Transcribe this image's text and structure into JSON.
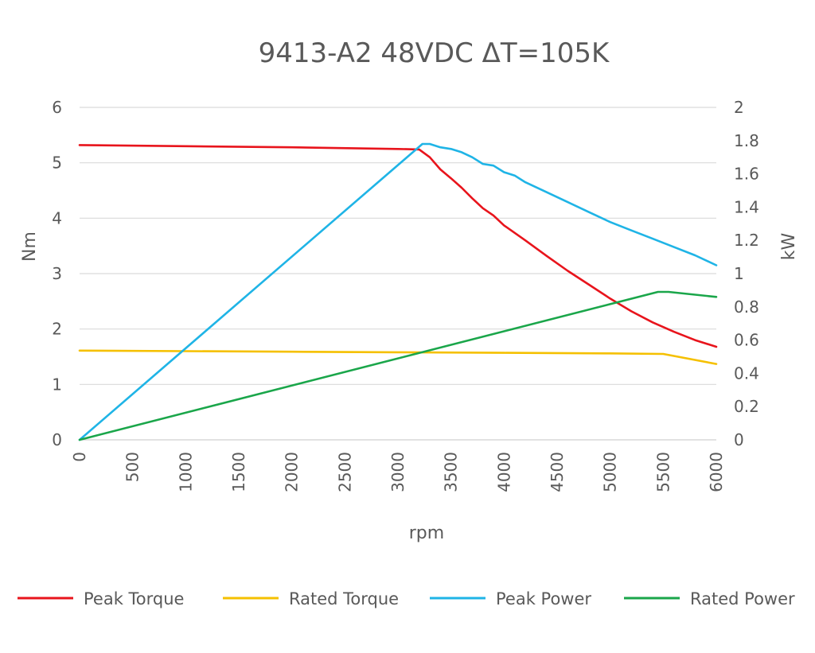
{
  "chart_data": {
    "type": "line",
    "title": "9413-A2 48VDC ΔT=105K",
    "xlabel": "rpm",
    "ylabel": "Nm",
    "y2label": "kW",
    "xlim": [
      0,
      6000
    ],
    "ylim": [
      0,
      6
    ],
    "y2lim": [
      0,
      2
    ],
    "x_ticks": [
      0,
      500,
      1000,
      1500,
      2000,
      2500,
      3000,
      3500,
      4000,
      4500,
      5000,
      5500,
      6000
    ],
    "y_ticks": [
      "0",
      "1",
      "2",
      "3",
      "4",
      "5",
      "6"
    ],
    "y2_ticks": [
      "0",
      "0.2",
      "0.4",
      "0.6",
      "0.8",
      "1",
      "1.2",
      "1.4",
      "1.6",
      "1.8",
      "2"
    ],
    "grid": true,
    "legend_position": "bottom",
    "series": [
      {
        "name": "Peak Torque",
        "color": "#e8141c",
        "axis": "left",
        "points": [
          [
            0,
            5.32
          ],
          [
            1000,
            5.3
          ],
          [
            2000,
            5.28
          ],
          [
            3000,
            5.25
          ],
          [
            3200,
            5.24
          ],
          [
            3300,
            5.1
          ],
          [
            3400,
            4.88
          ],
          [
            3500,
            4.72
          ],
          [
            3600,
            4.55
          ],
          [
            3700,
            4.36
          ],
          [
            3800,
            4.18
          ],
          [
            3900,
            4.05
          ],
          [
            4000,
            3.87
          ],
          [
            4200,
            3.6
          ],
          [
            4400,
            3.32
          ],
          [
            4600,
            3.05
          ],
          [
            4800,
            2.8
          ],
          [
            5000,
            2.55
          ],
          [
            5200,
            2.32
          ],
          [
            5400,
            2.12
          ],
          [
            5600,
            1.95
          ],
          [
            5800,
            1.8
          ],
          [
            6000,
            1.68
          ]
        ]
      },
      {
        "name": "Rated Torque",
        "color": "#f5c000",
        "axis": "left",
        "points": [
          [
            0,
            1.61
          ],
          [
            1000,
            1.6
          ],
          [
            2000,
            1.59
          ],
          [
            3000,
            1.58
          ],
          [
            4000,
            1.57
          ],
          [
            5000,
            1.56
          ],
          [
            5500,
            1.55
          ],
          [
            6000,
            1.37
          ]
        ]
      },
      {
        "name": "Peak Power",
        "color": "#1fb4e6",
        "axis": "right",
        "points": [
          [
            0,
            0
          ],
          [
            3230,
            1.78
          ],
          [
            3300,
            1.78
          ],
          [
            3400,
            1.76
          ],
          [
            3500,
            1.75
          ],
          [
            3600,
            1.73
          ],
          [
            3700,
            1.7
          ],
          [
            3800,
            1.66
          ],
          [
            3900,
            1.65
          ],
          [
            4000,
            1.61
          ],
          [
            4100,
            1.59
          ],
          [
            4200,
            1.55
          ],
          [
            4400,
            1.49
          ],
          [
            4600,
            1.43
          ],
          [
            4800,
            1.37
          ],
          [
            5000,
            1.31
          ],
          [
            5200,
            1.26
          ],
          [
            5400,
            1.21
          ],
          [
            5600,
            1.16
          ],
          [
            5800,
            1.11
          ],
          [
            6000,
            1.05
          ]
        ]
      },
      {
        "name": "Rated Power",
        "color": "#1aa64a",
        "axis": "right",
        "points": [
          [
            0,
            0
          ],
          [
            5450,
            0.89
          ],
          [
            5550,
            0.89
          ],
          [
            6000,
            0.86
          ]
        ]
      }
    ]
  }
}
